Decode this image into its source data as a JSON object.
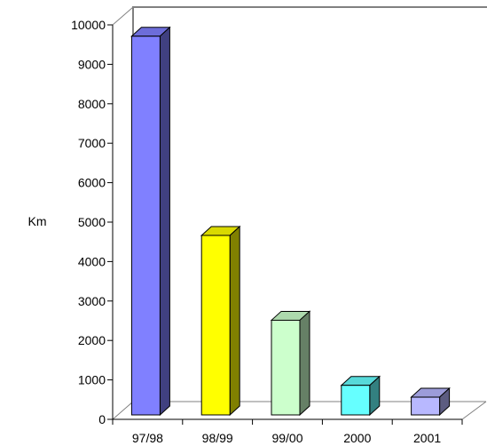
{
  "chart_data": {
    "type": "bar",
    "title": "",
    "xlabel": "",
    "ylabel": "Km",
    "categories": [
      "97/98",
      "98/99",
      "99/00",
      "2000",
      "2001"
    ],
    "values": [
      9600,
      4550,
      2400,
      750,
      450
    ],
    "ylim": [
      0,
      10000
    ],
    "yticks": [
      0,
      1000,
      2000,
      3000,
      4000,
      5000,
      6000,
      7000,
      8000,
      9000,
      10000
    ],
    "ytick_labels": [
      "0",
      "1000",
      "2000",
      "3000",
      "4000",
      "5000",
      "6000",
      "7000",
      "8000",
      "9000",
      "10000"
    ],
    "grid": false,
    "legend": "none",
    "three_d": true,
    "colors": [
      "#8080ff",
      "#ffff00",
      "#ccffcc",
      "#66ffff",
      "#b8b8ff"
    ]
  }
}
